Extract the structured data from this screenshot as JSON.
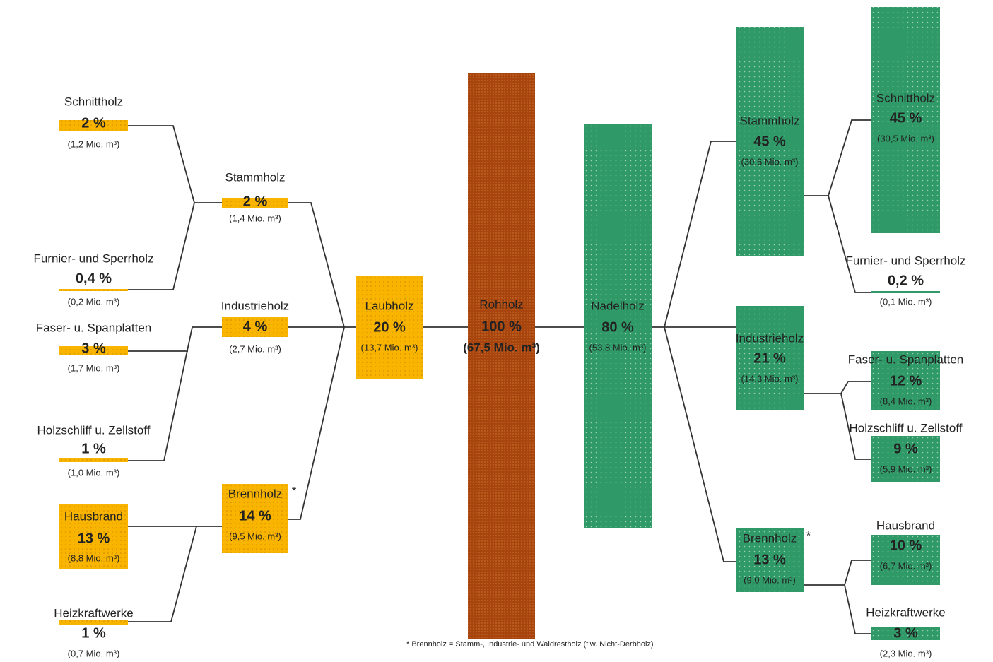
{
  "nodes": [
    {
      "label": "Rohholz",
      "percent": "100 %",
      "volume": "(67,5 Mio. m³)"
    },
    {
      "label": "Laubholz",
      "percent": "20 %",
      "volume": "(13,7 Mio. m³)"
    },
    {
      "label": "Nadelholz",
      "percent": "80 %",
      "volume": "(53,8 Mio. m³)"
    },
    {
      "label": "Stammholz",
      "percent": "2 %",
      "volume": "(1,4 Mio. m³)"
    },
    {
      "label": "Industrieholz",
      "percent": "4 %",
      "volume": "(2,7 Mio. m³)"
    },
    {
      "label": "Brennholz",
      "mark": "*",
      "percent": "14 %",
      "volume": "(9,5 Mio. m³)"
    },
    {
      "label": "Schnittholz",
      "percent": "2 %",
      "volume": "(1,2 Mio. m³)"
    },
    {
      "label": "Furnier- und Sperrholz",
      "percent": "0,4 %",
      "volume": "(0,2 Mio. m³)"
    },
    {
      "label": "Faser- u. Spanplatten",
      "percent": "3 %",
      "volume": "(1,7 Mio. m³)"
    },
    {
      "label": "Holzschliff u. Zellstoff",
      "percent": "1 %",
      "volume": "(1,0 Mio. m³)"
    },
    {
      "label": "Hausbrand",
      "percent": "13 %",
      "volume": "(8,8 Mio. m³)"
    },
    {
      "label": "Heizkraftwerke",
      "percent": "1 %",
      "volume": "(0,7 Mio. m³)"
    },
    {
      "label": "Stammholz",
      "percent": "45 %",
      "volume": "(30,6 Mio. m³)"
    },
    {
      "label": "Industrieholz",
      "percent": "21 %",
      "volume": "(14,3 Mio. m³)"
    },
    {
      "label": "Brennholz",
      "mark": "*",
      "percent": "13 %",
      "volume": "(9,0 Mio. m³)"
    },
    {
      "label": "Schnittholz",
      "percent": "45 %",
      "volume": "(30,5 Mio. m³)"
    },
    {
      "label": "Furnier- und Sperrholz",
      "percent": "0,2 %",
      "volume": "(0,1 Mio. m³)"
    },
    {
      "label": "Faser- u. Spanplatten",
      "percent": "12 %",
      "volume": "(8,4 Mio. m³)"
    },
    {
      "label": "Holzschliff u. Zellstoff",
      "percent": "9 %",
      "volume": "(5,9 Mio. m³)"
    },
    {
      "label": "Hausbrand",
      "percent": "10 %",
      "volume": "(6,7 Mio. m³)"
    },
    {
      "label": "Heizkraftwerke",
      "percent": "3 %",
      "volume": "(2,3 Mio. m³)"
    }
  ],
  "footnote": "* Brennholz = Stamm-, Industrie- und Waldrestholz (tlw. Nicht-Derbholz)"
}
